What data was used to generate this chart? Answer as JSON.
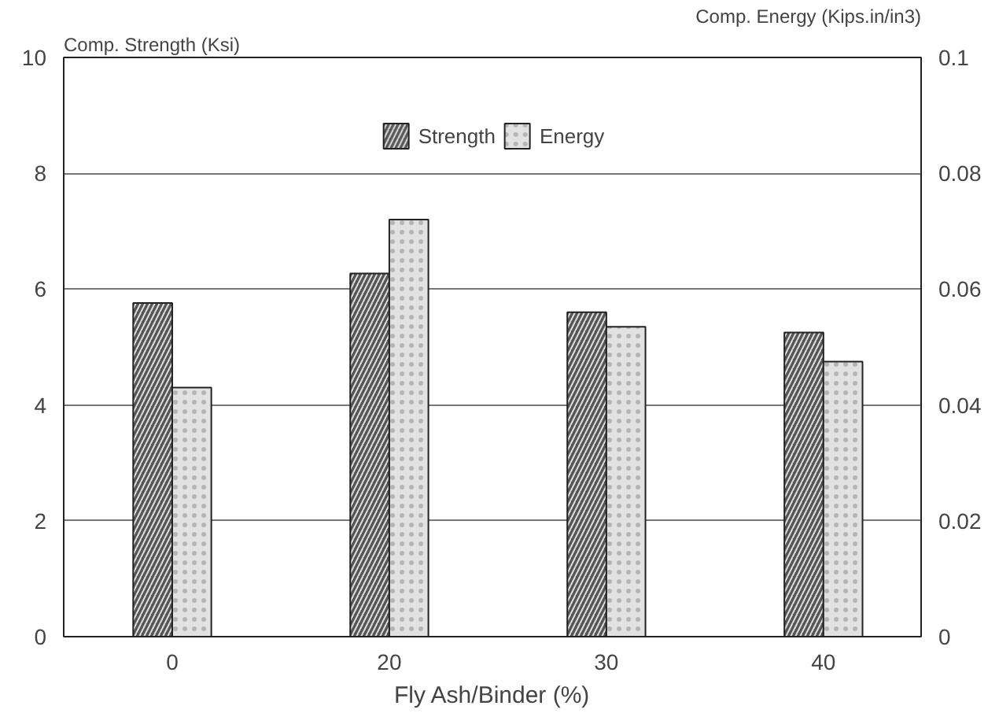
{
  "chart_data": {
    "type": "bar",
    "categories": [
      "0",
      "20",
      "30",
      "40"
    ],
    "xlabel": "Fly Ash/Binder (%)",
    "ylabel": "Comp. Strength (Ksi)",
    "y2label": "Comp. Energy (Kips.in/in3)",
    "series": [
      {
        "name": "Strength",
        "color": "#555555",
        "values": [
          5.76,
          6.27,
          5.6,
          5.25
        ]
      },
      {
        "name": "Energy",
        "color": "#e2e2e2",
        "axis": "y2",
        "values": [
          0.043,
          0.072,
          0.0535,
          0.0475
        ]
      }
    ],
    "ylim": [
      0,
      10
    ],
    "yticks": [
      0,
      2,
      4,
      6,
      8,
      10
    ],
    "y2lim": [
      0,
      0.1
    ],
    "y2ticks": [
      0,
      0.02,
      0.04,
      0.06,
      0.08,
      0.1
    ],
    "grid": "y",
    "legend": "top"
  }
}
